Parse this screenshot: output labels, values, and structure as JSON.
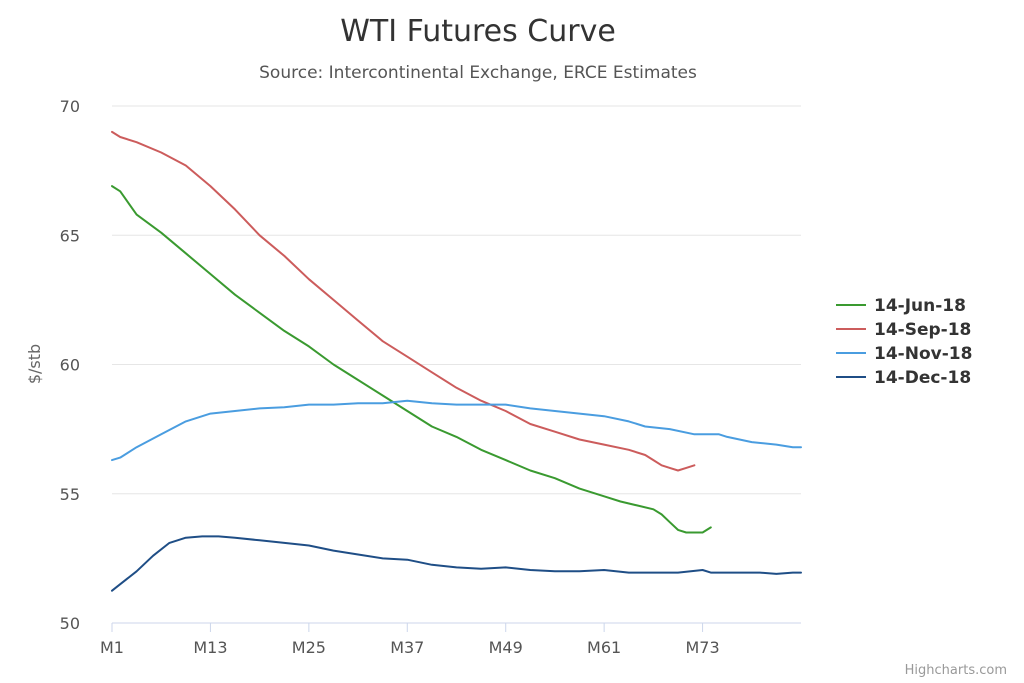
{
  "chart_data": {
    "type": "line",
    "title": "WTI Futures Curve",
    "subtitle": "Source: Intercontinental Exchange, ERCE Estimates",
    "xlabel": "",
    "ylabel": "$/stb",
    "ylim": [
      50,
      70
    ],
    "yticks": [
      50,
      55,
      60,
      65,
      70
    ],
    "xlim": [
      1,
      85
    ],
    "xticks": [
      {
        "x": 1,
        "label": "M1"
      },
      {
        "x": 13,
        "label": "M13"
      },
      {
        "x": 25,
        "label": "M25"
      },
      {
        "x": 37,
        "label": "M37"
      },
      {
        "x": 49,
        "label": "M49"
      },
      {
        "x": 61,
        "label": "M61"
      },
      {
        "x": 73,
        "label": "M73"
      }
    ],
    "grid": true,
    "legend_position": "right",
    "series": [
      {
        "name": "14-Jun-18",
        "color": "#3a9a30",
        "points": [
          [
            1,
            66.9
          ],
          [
            2,
            66.7
          ],
          [
            4,
            65.8
          ],
          [
            7,
            65.1
          ],
          [
            10,
            64.3
          ],
          [
            13,
            63.5
          ],
          [
            16,
            62.7
          ],
          [
            19,
            62.0
          ],
          [
            22,
            61.3
          ],
          [
            25,
            60.7
          ],
          [
            28,
            60.0
          ],
          [
            31,
            59.4
          ],
          [
            34,
            58.8
          ],
          [
            37,
            58.2
          ],
          [
            40,
            57.6
          ],
          [
            43,
            57.2
          ],
          [
            46,
            56.7
          ],
          [
            49,
            56.3
          ],
          [
            52,
            55.9
          ],
          [
            55,
            55.6
          ],
          [
            58,
            55.2
          ],
          [
            61,
            54.9
          ],
          [
            63,
            54.7
          ],
          [
            65,
            54.55
          ],
          [
            67,
            54.4
          ],
          [
            68,
            54.2
          ],
          [
            69,
            53.9
          ],
          [
            70,
            53.6
          ],
          [
            71,
            53.5
          ],
          [
            72,
            53.5
          ],
          [
            73,
            53.5
          ],
          [
            74,
            53.7
          ]
        ]
      },
      {
        "name": "14-Sep-18",
        "color": "#cc5c5c",
        "points": [
          [
            1,
            69.0
          ],
          [
            2,
            68.8
          ],
          [
            4,
            68.6
          ],
          [
            7,
            68.2
          ],
          [
            10,
            67.7
          ],
          [
            13,
            66.9
          ],
          [
            16,
            66.0
          ],
          [
            19,
            65.0
          ],
          [
            22,
            64.2
          ],
          [
            25,
            63.3
          ],
          [
            28,
            62.5
          ],
          [
            31,
            61.7
          ],
          [
            34,
            60.9
          ],
          [
            37,
            60.3
          ],
          [
            40,
            59.7
          ],
          [
            43,
            59.1
          ],
          [
            46,
            58.6
          ],
          [
            49,
            58.2
          ],
          [
            52,
            57.7
          ],
          [
            55,
            57.4
          ],
          [
            58,
            57.1
          ],
          [
            61,
            56.9
          ],
          [
            64,
            56.7
          ],
          [
            66,
            56.5
          ],
          [
            67,
            56.3
          ],
          [
            68,
            56.1
          ],
          [
            69,
            56.0
          ],
          [
            70,
            55.9
          ],
          [
            71,
            56.0
          ],
          [
            72,
            56.1
          ]
        ]
      },
      {
        "name": "14-Nov-18",
        "color": "#4a9de0",
        "points": [
          [
            1,
            56.3
          ],
          [
            2,
            56.4
          ],
          [
            4,
            56.8
          ],
          [
            7,
            57.3
          ],
          [
            10,
            57.8
          ],
          [
            13,
            58.1
          ],
          [
            16,
            58.2
          ],
          [
            19,
            58.3
          ],
          [
            22,
            58.35
          ],
          [
            25,
            58.45
          ],
          [
            28,
            58.45
          ],
          [
            31,
            58.5
          ],
          [
            34,
            58.5
          ],
          [
            37,
            58.6
          ],
          [
            40,
            58.5
          ],
          [
            43,
            58.45
          ],
          [
            46,
            58.45
          ],
          [
            49,
            58.45
          ],
          [
            52,
            58.3
          ],
          [
            55,
            58.2
          ],
          [
            58,
            58.1
          ],
          [
            61,
            58.0
          ],
          [
            64,
            57.8
          ],
          [
            66,
            57.6
          ],
          [
            69,
            57.5
          ],
          [
            72,
            57.3
          ],
          [
            75,
            57.3
          ],
          [
            76,
            57.2
          ],
          [
            79,
            57.0
          ],
          [
            82,
            56.9
          ],
          [
            84,
            56.8
          ],
          [
            85,
            56.8
          ]
        ]
      },
      {
        "name": "14-Dec-18",
        "color": "#1f4e86",
        "points": [
          [
            1,
            51.25
          ],
          [
            2,
            51.5
          ],
          [
            4,
            52.0
          ],
          [
            6,
            52.6
          ],
          [
            8,
            53.1
          ],
          [
            10,
            53.3
          ],
          [
            12,
            53.35
          ],
          [
            14,
            53.35
          ],
          [
            16,
            53.3
          ],
          [
            19,
            53.2
          ],
          [
            22,
            53.1
          ],
          [
            25,
            53.0
          ],
          [
            28,
            52.8
          ],
          [
            31,
            52.65
          ],
          [
            34,
            52.5
          ],
          [
            37,
            52.45
          ],
          [
            40,
            52.25
          ],
          [
            43,
            52.15
          ],
          [
            46,
            52.1
          ],
          [
            49,
            52.15
          ],
          [
            52,
            52.05
          ],
          [
            55,
            52.0
          ],
          [
            58,
            52.0
          ],
          [
            61,
            52.05
          ],
          [
            64,
            51.95
          ],
          [
            67,
            51.95
          ],
          [
            70,
            51.95
          ],
          [
            73,
            52.05
          ],
          [
            74,
            51.95
          ],
          [
            77,
            51.95
          ],
          [
            80,
            51.95
          ],
          [
            82,
            51.9
          ],
          [
            84,
            51.95
          ],
          [
            85,
            51.95
          ]
        ]
      }
    ]
  },
  "credits": "Highcharts.com"
}
